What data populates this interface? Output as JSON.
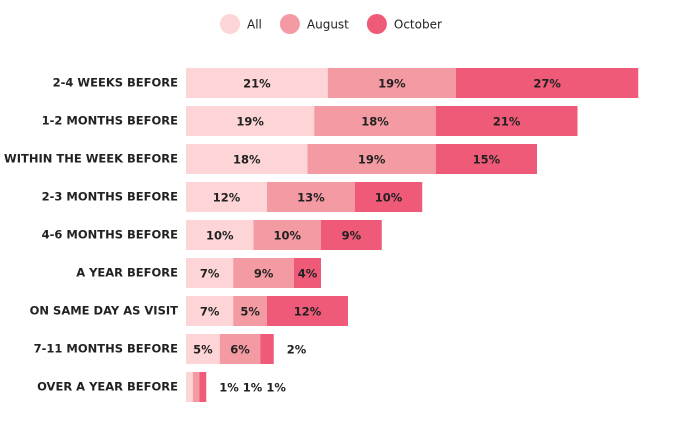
{
  "chart_data": {
    "type": "stacked-bar",
    "categories": [
      "2-4 WEEKS BEFORE",
      "1-2 MONTHS BEFORE",
      "WITHIN THE WEEK BEFORE",
      "2-3 MONTHS BEFORE",
      "4-6 MONTHS BEFORE",
      "A YEAR BEFORE",
      "ON SAME DAY AS VISIT",
      "7-11 MONTHS BEFORE",
      "OVER A YEAR BEFORE"
    ],
    "series": [
      {
        "name": "All",
        "color": "#fdd5d7",
        "values": [
          21,
          19,
          18,
          12,
          10,
          7,
          7,
          5,
          1
        ],
        "value_labels": [
          "21%",
          "19%",
          "18%",
          "12%",
          "10%",
          "7%",
          "7%",
          "5%",
          "1%"
        ]
      },
      {
        "name": "August",
        "color": "#f49aa3",
        "values": [
          19,
          18,
          19,
          13,
          10,
          9,
          5,
          6,
          1
        ],
        "value_labels": [
          "19%",
          "18%",
          "19%",
          "13%",
          "10%",
          "9%",
          "5%",
          "6%",
          "1%"
        ]
      },
      {
        "name": "October",
        "color": "#ef5a78",
        "values": [
          27,
          21,
          15,
          10,
          9,
          4,
          12,
          2,
          1
        ],
        "value_labels": [
          "27%",
          "21%",
          "15%",
          "10%",
          "9%",
          "4%",
          "12%",
          "2%",
          "1%"
        ]
      }
    ]
  }
}
